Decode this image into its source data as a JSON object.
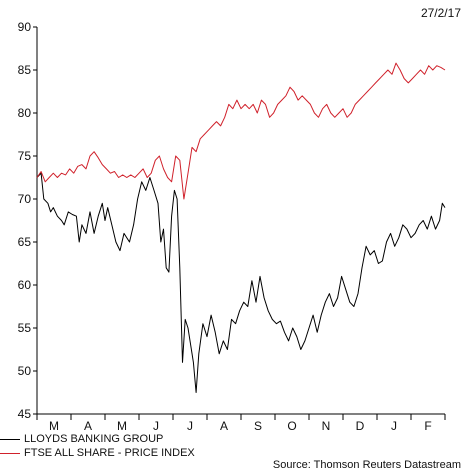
{
  "date_label": "27/2/17",
  "source_label": "Source: Thomson Reuters Datastream",
  "colors": {
    "lloyds": "#000000",
    "ftse": "#d0212b",
    "axis": "#000000"
  },
  "chart_data": {
    "type": "line",
    "ylim": [
      45,
      90
    ],
    "yticks": [
      45,
      50,
      55,
      60,
      65,
      70,
      75,
      80,
      85,
      90
    ],
    "x_categories": [
      "M",
      "A",
      "M",
      "J",
      "J",
      "A",
      "S",
      "O",
      "N",
      "D",
      "J",
      "F"
    ],
    "series": [
      {
        "name": "LLOYDS BANKING GROUP",
        "color": "#000000",
        "points": [
          [
            0.0,
            72.5
          ],
          [
            0.3,
            73.0
          ],
          [
            0.5,
            70.0
          ],
          [
            0.8,
            69.5
          ],
          [
            1.0,
            68.5
          ],
          [
            1.2,
            69.0
          ],
          [
            1.5,
            68.0
          ],
          [
            1.8,
            67.5
          ],
          [
            2.0,
            67.0
          ],
          [
            2.3,
            68.5
          ],
          [
            2.6,
            68.2
          ],
          [
            2.9,
            68.0
          ],
          [
            3.1,
            65.0
          ],
          [
            3.3,
            67.0
          ],
          [
            3.6,
            66.0
          ],
          [
            3.9,
            68.5
          ],
          [
            4.2,
            66.0
          ],
          [
            4.5,
            68.0
          ],
          [
            4.8,
            69.5
          ],
          [
            5.0,
            67.5
          ],
          [
            5.2,
            69.0
          ],
          [
            5.5,
            67.0
          ],
          [
            5.8,
            65.0
          ],
          [
            6.1,
            64.0
          ],
          [
            6.4,
            66.0
          ],
          [
            6.8,
            65.0
          ],
          [
            7.1,
            67.0
          ],
          [
            7.4,
            70.0
          ],
          [
            7.7,
            72.0
          ],
          [
            8.0,
            71.0
          ],
          [
            8.3,
            72.5
          ],
          [
            8.6,
            71.0
          ],
          [
            8.9,
            69.5
          ],
          [
            9.1,
            65.0
          ],
          [
            9.3,
            66.5
          ],
          [
            9.5,
            62.0
          ],
          [
            9.7,
            61.5
          ],
          [
            9.9,
            68.0
          ],
          [
            10.1,
            71.0
          ],
          [
            10.3,
            70.0
          ],
          [
            10.5,
            62.0
          ],
          [
            10.7,
            51.0
          ],
          [
            10.9,
            56.0
          ],
          [
            11.1,
            55.0
          ],
          [
            11.3,
            53.0
          ],
          [
            11.5,
            51.0
          ],
          [
            11.7,
            47.5
          ],
          [
            11.9,
            52.0
          ],
          [
            12.2,
            55.5
          ],
          [
            12.5,
            54.0
          ],
          [
            12.8,
            56.5
          ],
          [
            13.1,
            54.5
          ],
          [
            13.4,
            52.0
          ],
          [
            13.7,
            53.5
          ],
          [
            14.0,
            52.5
          ],
          [
            14.3,
            56.0
          ],
          [
            14.6,
            55.5
          ],
          [
            14.9,
            57.0
          ],
          [
            15.2,
            58.0
          ],
          [
            15.5,
            57.5
          ],
          [
            15.8,
            60.5
          ],
          [
            16.1,
            58.0
          ],
          [
            16.4,
            61.0
          ],
          [
            16.7,
            58.5
          ],
          [
            17.0,
            57.0
          ],
          [
            17.3,
            56.0
          ],
          [
            17.6,
            55.5
          ],
          [
            17.9,
            55.8
          ],
          [
            18.2,
            54.5
          ],
          [
            18.5,
            53.5
          ],
          [
            18.8,
            55.0
          ],
          [
            19.1,
            54.0
          ],
          [
            19.4,
            52.5
          ],
          [
            19.7,
            53.5
          ],
          [
            20.0,
            55.0
          ],
          [
            20.3,
            56.5
          ],
          [
            20.6,
            54.5
          ],
          [
            20.9,
            56.5
          ],
          [
            21.2,
            58.0
          ],
          [
            21.5,
            59.0
          ],
          [
            21.8,
            57.5
          ],
          [
            22.1,
            58.5
          ],
          [
            22.4,
            61.0
          ],
          [
            22.7,
            59.5
          ],
          [
            23.0,
            58.0
          ],
          [
            23.3,
            57.5
          ],
          [
            23.6,
            59.0
          ],
          [
            23.9,
            62.0
          ],
          [
            24.2,
            64.5
          ],
          [
            24.5,
            63.5
          ],
          [
            24.8,
            64.0
          ],
          [
            25.1,
            62.5
          ],
          [
            25.4,
            62.8
          ],
          [
            25.7,
            65.0
          ],
          [
            26.0,
            66.0
          ],
          [
            26.3,
            64.5
          ],
          [
            26.6,
            65.5
          ],
          [
            26.9,
            67.0
          ],
          [
            27.2,
            66.5
          ],
          [
            27.5,
            65.5
          ],
          [
            27.8,
            66.0
          ],
          [
            28.1,
            67.0
          ],
          [
            28.4,
            67.5
          ],
          [
            28.7,
            66.5
          ],
          [
            29.0,
            68.0
          ],
          [
            29.3,
            66.5
          ],
          [
            29.6,
            67.5
          ],
          [
            29.8,
            69.5
          ],
          [
            30.0,
            69.0
          ]
        ]
      },
      {
        "name": "FTSE ALL SHARE - PRICE INDEX",
        "color": "#d0212b",
        "points": [
          [
            0.0,
            72.5
          ],
          [
            0.3,
            73.2
          ],
          [
            0.6,
            72.0
          ],
          [
            0.9,
            72.5
          ],
          [
            1.2,
            73.0
          ],
          [
            1.5,
            72.5
          ],
          [
            1.8,
            73.0
          ],
          [
            2.1,
            72.8
          ],
          [
            2.4,
            73.5
          ],
          [
            2.7,
            73.0
          ],
          [
            3.0,
            73.8
          ],
          [
            3.3,
            74.0
          ],
          [
            3.6,
            73.5
          ],
          [
            3.9,
            75.0
          ],
          [
            4.2,
            75.5
          ],
          [
            4.5,
            74.8
          ],
          [
            4.8,
            74.0
          ],
          [
            5.1,
            73.5
          ],
          [
            5.4,
            73.0
          ],
          [
            5.7,
            73.2
          ],
          [
            6.0,
            72.5
          ],
          [
            6.3,
            72.8
          ],
          [
            6.6,
            72.5
          ],
          [
            6.9,
            72.8
          ],
          [
            7.2,
            72.5
          ],
          [
            7.5,
            73.0
          ],
          [
            7.8,
            73.5
          ],
          [
            8.1,
            72.5
          ],
          [
            8.4,
            73.0
          ],
          [
            8.7,
            74.5
          ],
          [
            9.0,
            75.0
          ],
          [
            9.3,
            73.5
          ],
          [
            9.6,
            72.5
          ],
          [
            9.9,
            72.0
          ],
          [
            10.2,
            75.0
          ],
          [
            10.5,
            74.5
          ],
          [
            10.8,
            70.0
          ],
          [
            11.1,
            73.0
          ],
          [
            11.4,
            76.0
          ],
          [
            11.7,
            75.5
          ],
          [
            12.0,
            77.0
          ],
          [
            12.3,
            77.5
          ],
          [
            12.6,
            78.0
          ],
          [
            12.9,
            78.5
          ],
          [
            13.2,
            79.0
          ],
          [
            13.5,
            78.5
          ],
          [
            13.8,
            79.5
          ],
          [
            14.1,
            81.0
          ],
          [
            14.4,
            80.5
          ],
          [
            14.7,
            81.5
          ],
          [
            15.0,
            80.5
          ],
          [
            15.3,
            81.0
          ],
          [
            15.6,
            80.5
          ],
          [
            15.9,
            81.0
          ],
          [
            16.2,
            80.0
          ],
          [
            16.5,
            81.5
          ],
          [
            16.8,
            81.0
          ],
          [
            17.1,
            79.5
          ],
          [
            17.4,
            80.0
          ],
          [
            17.7,
            81.0
          ],
          [
            18.0,
            81.5
          ],
          [
            18.3,
            82.0
          ],
          [
            18.6,
            83.0
          ],
          [
            18.9,
            82.5
          ],
          [
            19.2,
            81.5
          ],
          [
            19.5,
            82.0
          ],
          [
            19.8,
            81.5
          ],
          [
            20.1,
            81.0
          ],
          [
            20.4,
            80.0
          ],
          [
            20.7,
            79.5
          ],
          [
            21.0,
            80.5
          ],
          [
            21.3,
            81.0
          ],
          [
            21.6,
            80.0
          ],
          [
            21.9,
            79.5
          ],
          [
            22.2,
            80.0
          ],
          [
            22.5,
            80.5
          ],
          [
            22.8,
            79.5
          ],
          [
            23.1,
            80.0
          ],
          [
            23.4,
            81.0
          ],
          [
            23.7,
            81.5
          ],
          [
            24.0,
            82.0
          ],
          [
            24.3,
            82.5
          ],
          [
            24.6,
            83.0
          ],
          [
            24.9,
            83.5
          ],
          [
            25.2,
            84.0
          ],
          [
            25.5,
            84.5
          ],
          [
            25.8,
            85.0
          ],
          [
            26.1,
            84.5
          ],
          [
            26.4,
            85.8
          ],
          [
            26.7,
            85.0
          ],
          [
            27.0,
            84.0
          ],
          [
            27.3,
            83.5
          ],
          [
            27.6,
            84.0
          ],
          [
            27.9,
            84.5
          ],
          [
            28.2,
            85.0
          ],
          [
            28.5,
            84.5
          ],
          [
            28.8,
            85.5
          ],
          [
            29.1,
            85.0
          ],
          [
            29.4,
            85.5
          ],
          [
            29.7,
            85.3
          ],
          [
            30.0,
            85.0
          ]
        ]
      }
    ]
  }
}
